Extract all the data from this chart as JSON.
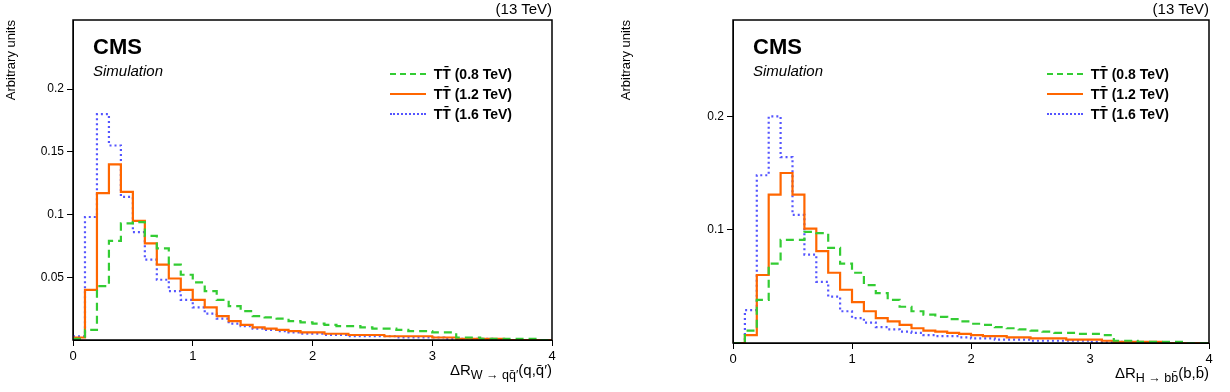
{
  "chart_data": [
    {
      "type": "histogram",
      "xlabel": "ΔR$_{W → qq̄′}$(q,q̄′)",
      "ylabel": "Arbitrary units",
      "annotations": [
        "CMS",
        "Simulation",
        "(13 TeV)"
      ],
      "bins": [
        0,
        0.1,
        0.2,
        0.3,
        0.4,
        0.5,
        0.6,
        0.7,
        0.8,
        0.9,
        1.0,
        1.1,
        1.2,
        1.3,
        1.4,
        1.5,
        1.6,
        1.7,
        1.8,
        1.9,
        2.0,
        2.1,
        2.2,
        2.3,
        2.4,
        2.5,
        2.6,
        2.7,
        2.8,
        2.9,
        3.0,
        3.1,
        3.2,
        3.3,
        3.4,
        3.5,
        3.6,
        3.7,
        3.8,
        3.9,
        4.0
      ],
      "series": [
        {
          "name": "TT̄ (0.8 TeV)",
          "color": "#33cc33",
          "line_style": "dashed",
          "values": [
            0.001,
            0.008,
            0.043,
            0.079,
            0.093,
            0.094,
            0.083,
            0.073,
            0.06,
            0.052,
            0.046,
            0.039,
            0.032,
            0.027,
            0.023,
            0.019,
            0.018,
            0.017,
            0.015,
            0.014,
            0.013,
            0.012,
            0.011,
            0.011,
            0.01,
            0.009,
            0.009,
            0.008,
            0.007,
            0.007,
            0.006,
            0.006,
            0.002,
            0.002,
            0.001,
            0.001,
            0.001,
            0.001,
            0.001,
            0
          ]
        },
        {
          "name": "TT̄ (1.2 TeV)",
          "color": "#ff6600",
          "line_style": "solid",
          "values": [
            0.002,
            0.04,
            0.117,
            0.14,
            0.118,
            0.095,
            0.077,
            0.06,
            0.049,
            0.04,
            0.032,
            0.026,
            0.019,
            0.015,
            0.012,
            0.01,
            0.009,
            0.008,
            0.007,
            0.006,
            0.006,
            0.005,
            0.005,
            0.004,
            0.004,
            0.004,
            0.003,
            0.003,
            0.003,
            0.003,
            0.002,
            0.002,
            0.001,
            0.001,
            0.001,
            0.001,
            0,
            0,
            0,
            0
          ]
        },
        {
          "name": "TT̄ (1.6 TeV)",
          "color": "#5555ff",
          "line_style": "dotted",
          "values": [
            0.003,
            0.098,
            0.18,
            0.155,
            0.114,
            0.086,
            0.064,
            0.048,
            0.039,
            0.032,
            0.026,
            0.021,
            0.017,
            0.013,
            0.011,
            0.009,
            0.008,
            0.007,
            0.006,
            0.005,
            0.005,
            0.004,
            0.004,
            0.003,
            0.003,
            0.003,
            0.003,
            0.002,
            0.002,
            0.002,
            0.002,
            0.001,
            0.001,
            0.001,
            0.001,
            0,
            0,
            0,
            0,
            0
          ]
        }
      ],
      "xlim": [
        0,
        4
      ],
      "xticks": [
        0,
        1,
        2,
        3,
        4
      ],
      "ylim": [
        0,
        0.255
      ],
      "yticks": [
        0.05,
        0.1,
        0.15,
        0.2
      ],
      "legend": "top right"
    },
    {
      "type": "histogram",
      "xlabel": "ΔR$_{H → bb̄}$(b,b̄)",
      "ylabel": "Arbitrary units",
      "annotations": [
        "CMS",
        "Simulation",
        "(13 TeV)"
      ],
      "bins": [
        0,
        0.1,
        0.2,
        0.3,
        0.4,
        0.5,
        0.6,
        0.7,
        0.8,
        0.9,
        1.0,
        1.1,
        1.2,
        1.3,
        1.4,
        1.5,
        1.6,
        1.7,
        1.8,
        1.9,
        2.0,
        2.1,
        2.2,
        2.3,
        2.4,
        2.5,
        2.6,
        2.7,
        2.8,
        2.9,
        3.0,
        3.1,
        3.2,
        3.3,
        3.4,
        3.5,
        3.6,
        3.7,
        3.8,
        3.9,
        4.0
      ],
      "series": [
        {
          "name": "TT̄ (0.8 TeV)",
          "color": "#33cc33",
          "line_style": "dashed",
          "values": [
            0,
            0.011,
            0.038,
            0.07,
            0.091,
            0.091,
            0.098,
            0.097,
            0.084,
            0.07,
            0.062,
            0.051,
            0.044,
            0.038,
            0.032,
            0.028,
            0.025,
            0.023,
            0.021,
            0.019,
            0.017,
            0.016,
            0.014,
            0.013,
            0.012,
            0.011,
            0.01,
            0.009,
            0.009,
            0.008,
            0.008,
            0.007,
            0.002,
            0.002,
            0.001,
            0.001,
            0.001,
            0.001,
            0,
            0
          ]
        },
        {
          "name": "TT̄ (1.2 TeV)",
          "color": "#ff6600",
          "line_style": "solid",
          "values": [
            0,
            0.007,
            0.06,
            0.131,
            0.15,
            0.131,
            0.101,
            0.081,
            0.062,
            0.047,
            0.036,
            0.028,
            0.022,
            0.019,
            0.016,
            0.013,
            0.011,
            0.01,
            0.009,
            0.008,
            0.007,
            0.006,
            0.006,
            0.005,
            0.005,
            0.004,
            0.004,
            0.004,
            0.003,
            0.003,
            0.003,
            0.002,
            0.001,
            0.001,
            0.001,
            0.001,
            0,
            0,
            0,
            0
          ]
        },
        {
          "name": "TT̄ (1.6 TeV)",
          "color": "#5555ff",
          "line_style": "dotted",
          "values": [
            0,
            0.029,
            0.148,
            0.2,
            0.164,
            0.113,
            0.078,
            0.054,
            0.041,
            0.028,
            0.022,
            0.018,
            0.014,
            0.012,
            0.01,
            0.009,
            0.007,
            0.006,
            0.006,
            0.005,
            0.004,
            0.004,
            0.003,
            0.003,
            0.003,
            0.002,
            0.002,
            0.002,
            0.002,
            0.002,
            0.001,
            0.001,
            0.001,
            0.001,
            0,
            0,
            0,
            0,
            0,
            0
          ]
        }
      ],
      "xlim": [
        0,
        4
      ],
      "xticks": [
        0,
        1,
        2,
        3,
        4
      ],
      "ylim": [
        0,
        0.285
      ],
      "yticks": [
        0.1,
        0.2
      ],
      "legend": "top right"
    }
  ]
}
